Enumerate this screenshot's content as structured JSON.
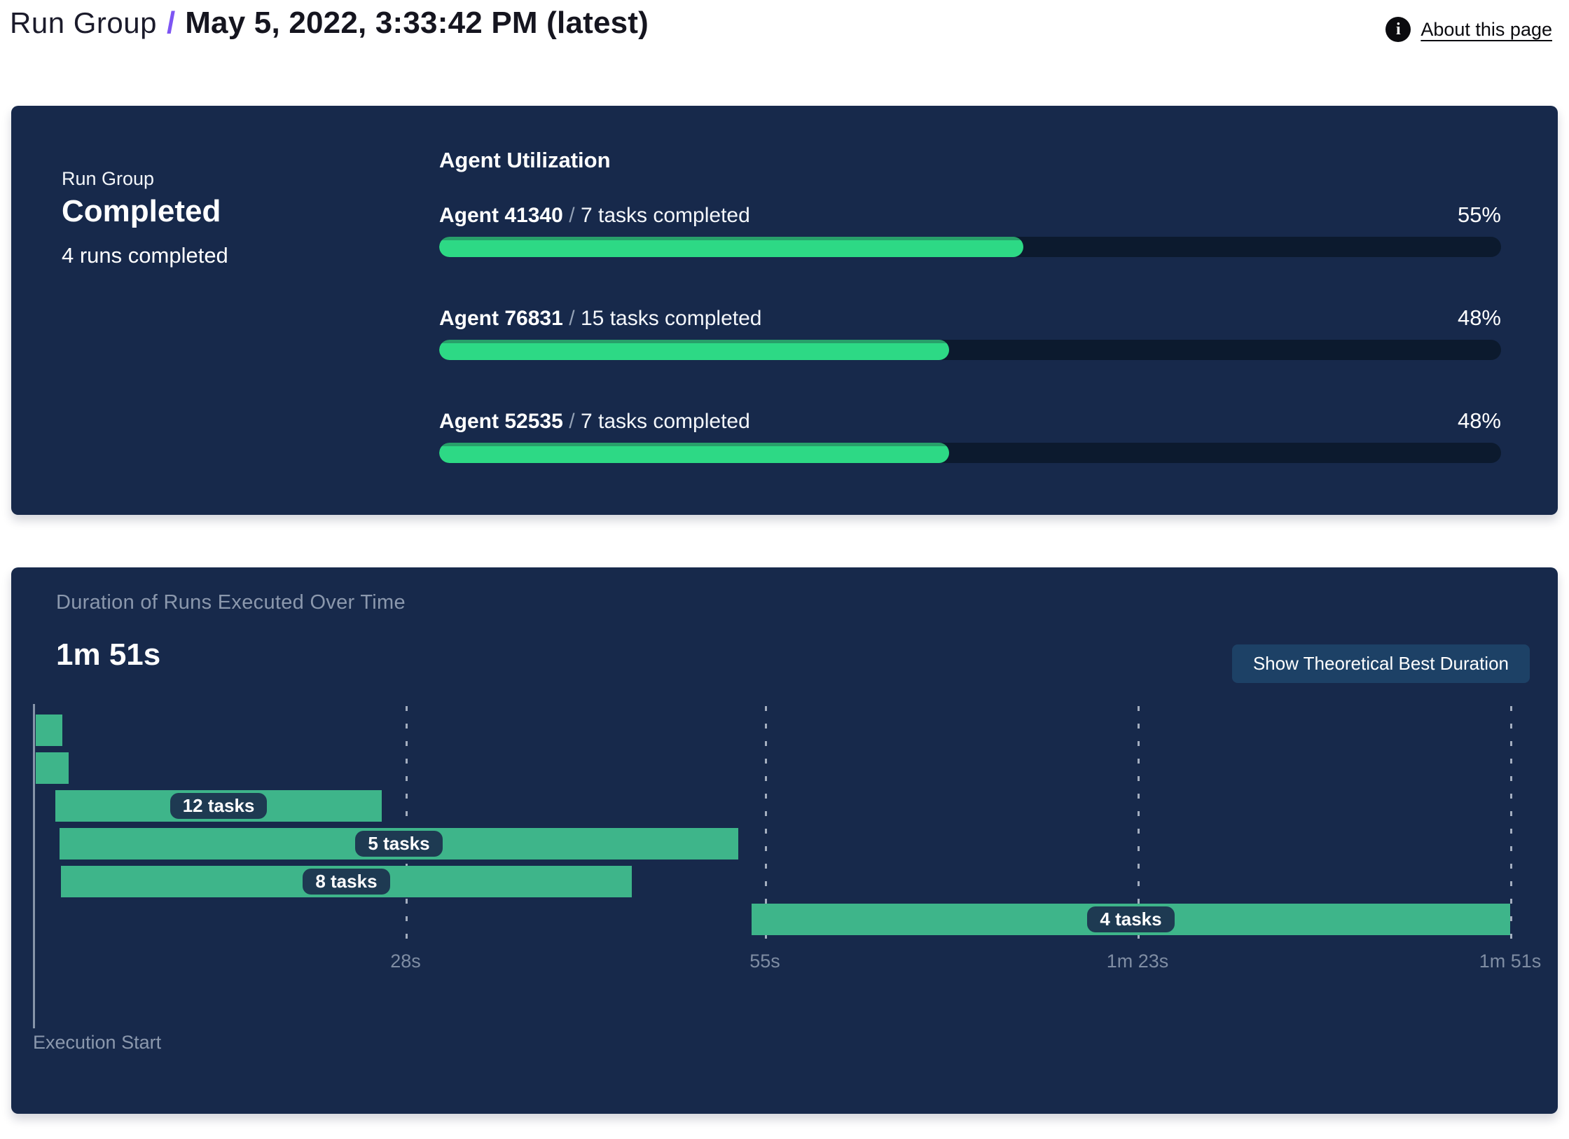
{
  "header": {
    "breadcrumb_root": "Run Group",
    "separator": "/",
    "title": "May 5, 2022, 3:33:42 PM (latest)",
    "about_link": "About this page",
    "info_icon_glyph": "i"
  },
  "colors": {
    "panel_navy": "#17294b",
    "progress_green": "#2dd985",
    "progress_green_dark": "#28a06a",
    "progress_track": "#0c1a2e",
    "gantt_green": "#3eb58a",
    "gantt_label_pill": "#1e3a52",
    "accent_purple": "#7d55f3",
    "muted_text": "#8b98ad",
    "button_blue": "#1d4166"
  },
  "summary": {
    "label": "Run Group",
    "status": "Completed",
    "runs": "4 runs completed"
  },
  "utilization": {
    "heading": "Agent Utilization",
    "separator": "/",
    "agents": [
      {
        "name": "Agent 41340",
        "tasks": "7 tasks completed",
        "percent": 55,
        "percent_label": "55%"
      },
      {
        "name": "Agent 76831",
        "tasks": "15 tasks completed",
        "percent": 48,
        "percent_label": "48%"
      },
      {
        "name": "Agent 52535",
        "tasks": "7 tasks completed",
        "percent": 48,
        "percent_label": "48%"
      }
    ]
  },
  "duration_panel": {
    "title": "Duration of Runs Executed Over Time",
    "total": "1m 51s",
    "button": "Show Theoretical Best Duration"
  },
  "chart_data": {
    "type": "gantt",
    "title": "Duration of Runs Executed Over Time",
    "total_duration": "1m 51s",
    "x_unit": "seconds",
    "x_min": 0,
    "x_max": 111,
    "grid": "dashed-vertical",
    "ticks": [
      {
        "s": 28,
        "label": "28s"
      },
      {
        "s": 55,
        "label": "55s"
      },
      {
        "s": 83,
        "label": "1m 23s"
      },
      {
        "s": 111,
        "label": "1m 51s"
      }
    ],
    "bars": [
      {
        "start_s": 0.2,
        "end_s": 2.2,
        "label": ""
      },
      {
        "start_s": 0.2,
        "end_s": 2.7,
        "label": ""
      },
      {
        "start_s": 1.7,
        "end_s": 26.2,
        "label": "12 tasks"
      },
      {
        "start_s": 2.0,
        "end_s": 53.0,
        "label": "5 tasks"
      },
      {
        "start_s": 2.1,
        "end_s": 45.0,
        "label": "8 tasks"
      },
      {
        "start_s": 54.0,
        "end_s": 111.0,
        "label": "4 tasks"
      }
    ],
    "execution_start_label": "Execution Start"
  }
}
